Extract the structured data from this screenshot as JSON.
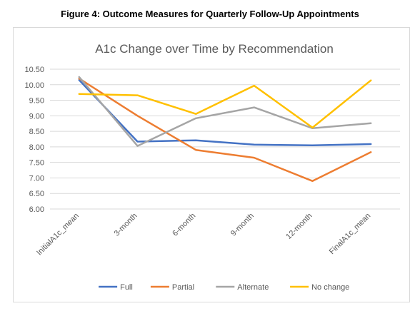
{
  "figure_caption": "Figure 4: Outcome Measures for Quarterly Follow-Up Appointments",
  "chart_data": {
    "type": "line",
    "title": "A1c Change over Time by Recommendation",
    "xlabel": "",
    "ylabel": "",
    "categories": [
      "InitialA1c_mean",
      "3-month",
      "6-month",
      "9-month",
      "12-month",
      "FinalA1c_mean"
    ],
    "ylim": [
      6.0,
      10.5
    ],
    "yticks": [
      "6.00",
      "6.50",
      "7.00",
      "7.50",
      "8.00",
      "8.50",
      "9.00",
      "9.50",
      "10.00",
      "10.50"
    ],
    "grid": true,
    "legend": "bottom",
    "series": [
      {
        "name": "Full",
        "color": "#4472C4",
        "values": [
          10.15,
          8.17,
          8.21,
          8.07,
          8.05,
          8.09
        ]
      },
      {
        "name": "Partial",
        "color": "#ED7D31",
        "values": [
          10.2,
          9.0,
          7.9,
          7.65,
          6.9,
          7.83
        ]
      },
      {
        "name": "Alternate",
        "color": "#A5A5A5",
        "values": [
          10.25,
          8.03,
          8.92,
          9.27,
          8.6,
          8.76
        ]
      },
      {
        "name": "No change",
        "color": "#FFC000",
        "values": [
          9.7,
          9.66,
          9.06,
          9.97,
          8.62,
          10.14
        ]
      }
    ]
  }
}
